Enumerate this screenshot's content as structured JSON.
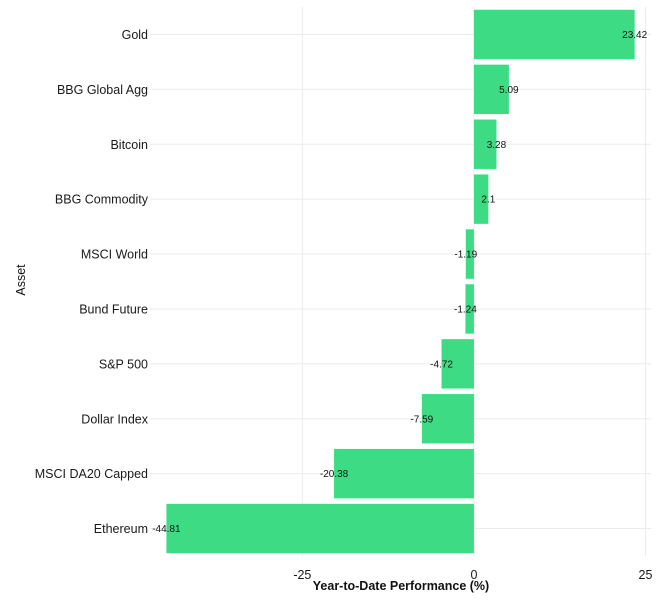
{
  "chart_data": {
    "type": "bar",
    "orientation": "horizontal",
    "categories": [
      "Gold",
      "BBG Global Agg",
      "Bitcoin",
      "BBG Commodity",
      "MSCI World",
      "Bund Future",
      "S&P 500",
      "Dollar Index",
      "MSCI DA20 Capped",
      "Ethereum"
    ],
    "values": [
      23.42,
      5.09,
      3.28,
      2.1,
      -1.19,
      -1.24,
      -4.72,
      -7.59,
      -20.38,
      -44.81
    ],
    "value_labels": [
      "23.42",
      "5.09",
      "3.28",
      "2.1",
      "-1.19",
      "-1.24",
      "-4.72",
      "-7.59",
      "-20.38",
      "-44.81"
    ],
    "xlabel": "Year-to-Date Performance (%)",
    "ylabel": "Asset",
    "xticks": [
      -25,
      0,
      25
    ],
    "xtick_labels": [
      "-25",
      "0",
      "25"
    ],
    "xlim": [
      -47.2,
      25.8
    ],
    "grid": true,
    "bar_color": "#3ddc84"
  }
}
